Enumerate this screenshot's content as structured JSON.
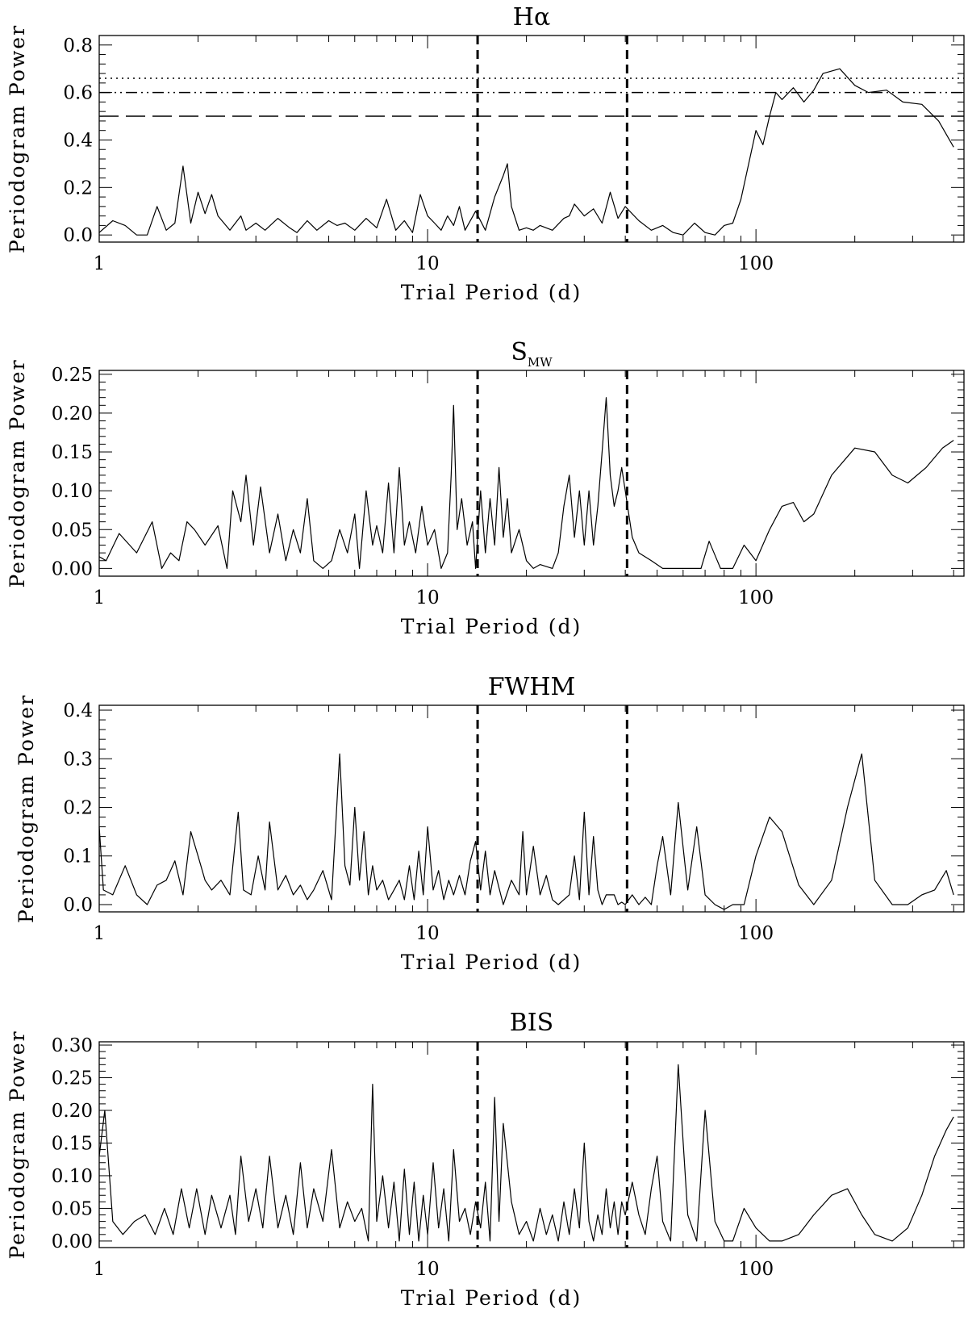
{
  "chart_data": [
    {
      "type": "line",
      "title": "Hα",
      "xlabel": "Trial Period (d)",
      "ylabel": "Periodogram Power",
      "x_scale": "log",
      "xlim": [
        1,
        430
      ],
      "ylim": [
        -0.03,
        0.84
      ],
      "x_tick_labels": [
        "1",
        "10",
        "100"
      ],
      "y_tick_labels": [
        "0.0",
        "0.2",
        "0.4",
        "0.6",
        "0.8"
      ],
      "y_ticks": [
        0.0,
        0.2,
        0.4,
        0.6,
        0.8
      ],
      "vertical_markers": [
        14.2,
        40.5
      ],
      "horizontal_markers": [
        {
          "y": 0.66,
          "style": "dotted"
        },
        {
          "y": 0.6,
          "style": "dash-dot-dot"
        },
        {
          "y": 0.5,
          "style": "long-dash"
        }
      ],
      "grid": false,
      "series": [
        {
          "x": [
            1.0,
            1.1,
            1.2,
            1.3,
            1.4,
            1.5,
            1.6,
            1.7,
            1.8,
            1.9,
            2.0,
            2.1,
            2.2,
            2.3,
            2.5,
            2.7,
            2.8,
            3.0,
            3.2,
            3.5,
            3.8,
            4.0,
            4.3,
            4.6,
            5.0,
            5.3,
            5.6,
            6.0,
            6.5,
            7.0,
            7.5,
            8.0,
            8.5,
            9.0,
            9.5,
            10.0,
            10.5,
            11.0,
            11.5,
            12.0,
            12.5,
            13.0,
            14.0,
            15.0,
            16.0,
            17.0,
            17.5,
            18.0,
            19.0,
            20.0,
            21.0,
            22.0,
            24.0,
            26.0,
            27.0,
            28.0,
            30.0,
            32.0,
            34.0,
            36.0,
            38.0,
            40.0,
            44.0,
            48.0,
            52.0,
            56.0,
            60.0,
            65.0,
            70.0,
            75.0,
            80.0,
            85.0,
            90.0,
            100.0,
            105.0,
            110.0,
            115.0,
            120.0,
            130.0,
            140.0,
            150.0,
            160.0,
            180.0,
            200.0,
            220.0,
            250.0,
            280.0,
            320.0,
            360.0,
            400.0
          ],
          "y": [
            0.01,
            0.06,
            0.04,
            0.0,
            0.0,
            0.12,
            0.02,
            0.05,
            0.29,
            0.05,
            0.18,
            0.09,
            0.17,
            0.08,
            0.02,
            0.08,
            0.02,
            0.05,
            0.02,
            0.07,
            0.03,
            0.01,
            0.06,
            0.02,
            0.06,
            0.04,
            0.05,
            0.02,
            0.07,
            0.03,
            0.15,
            0.02,
            0.06,
            0.01,
            0.17,
            0.08,
            0.05,
            0.02,
            0.08,
            0.04,
            0.12,
            0.02,
            0.1,
            0.02,
            0.16,
            0.25,
            0.3,
            0.12,
            0.02,
            0.03,
            0.02,
            0.04,
            0.02,
            0.07,
            0.08,
            0.13,
            0.08,
            0.11,
            0.05,
            0.18,
            0.07,
            0.12,
            0.06,
            0.02,
            0.04,
            0.01,
            0.0,
            0.05,
            0.01,
            0.0,
            0.04,
            0.05,
            0.15,
            0.44,
            0.38,
            0.5,
            0.6,
            0.57,
            0.62,
            0.56,
            0.61,
            0.68,
            0.7,
            0.63,
            0.6,
            0.61,
            0.56,
            0.55,
            0.48,
            0.37
          ]
        }
      ]
    },
    {
      "type": "line",
      "title": "S",
      "title_sub": "MW",
      "xlabel": "Trial Period (d)",
      "ylabel": "Periodogram Power",
      "x_scale": "log",
      "xlim": [
        1,
        430
      ],
      "ylim": [
        -0.01,
        0.255
      ],
      "x_tick_labels": [
        "1",
        "10",
        "100"
      ],
      "y_tick_labels": [
        "0.00",
        "0.05",
        "0.10",
        "0.15",
        "0.20",
        "0.25"
      ],
      "y_ticks": [
        0.0,
        0.05,
        0.1,
        0.15,
        0.2,
        0.25
      ],
      "vertical_markers": [
        14.2,
        40.5
      ],
      "grid": false,
      "series": [
        {
          "x": [
            1.0,
            1.05,
            1.15,
            1.3,
            1.45,
            1.55,
            1.65,
            1.75,
            1.85,
            1.95,
            2.1,
            2.3,
            2.45,
            2.55,
            2.7,
            2.8,
            2.95,
            3.1,
            3.3,
            3.5,
            3.7,
            3.9,
            4.1,
            4.3,
            4.5,
            4.8,
            5.1,
            5.4,
            5.7,
            6.0,
            6.2,
            6.5,
            6.8,
            7.0,
            7.3,
            7.6,
            7.9,
            8.2,
            8.5,
            8.8,
            9.2,
            9.6,
            10.0,
            10.5,
            11.0,
            11.5,
            11.8,
            12.0,
            12.3,
            12.7,
            13.2,
            13.7,
            14.0,
            14.5,
            15.0,
            15.5,
            16.0,
            16.5,
            17.0,
            17.5,
            18.0,
            19.0,
            20.0,
            21.0,
            22.0,
            24.0,
            25.0,
            26.0,
            27.0,
            28.0,
            29.0,
            30.0,
            31.0,
            32.0,
            33.0,
            34.0,
            35.0,
            36.0,
            37.0,
            38.0,
            39.0,
            40.0,
            42.0,
            44.0,
            48.0,
            52.0,
            56.0,
            62.0,
            68.0,
            72.0,
            78.0,
            85.0,
            92.0,
            100.0,
            110.0,
            120.0,
            130.0,
            140.0,
            150.0,
            170.0,
            200.0,
            230.0,
            260.0,
            290.0,
            330.0,
            370.0,
            400.0
          ],
          "y": [
            0.015,
            0.01,
            0.045,
            0.02,
            0.06,
            0.0,
            0.02,
            0.01,
            0.06,
            0.05,
            0.03,
            0.055,
            0.0,
            0.1,
            0.06,
            0.12,
            0.03,
            0.105,
            0.02,
            0.07,
            0.01,
            0.05,
            0.02,
            0.09,
            0.01,
            0.0,
            0.01,
            0.05,
            0.02,
            0.07,
            0.0,
            0.1,
            0.03,
            0.055,
            0.02,
            0.11,
            0.02,
            0.13,
            0.03,
            0.06,
            0.02,
            0.08,
            0.03,
            0.05,
            0.0,
            0.02,
            0.12,
            0.21,
            0.05,
            0.09,
            0.03,
            0.06,
            0.0,
            0.1,
            0.02,
            0.09,
            0.03,
            0.13,
            0.04,
            0.09,
            0.02,
            0.05,
            0.01,
            0.0,
            0.005,
            0.0,
            0.02,
            0.08,
            0.12,
            0.04,
            0.1,
            0.03,
            0.1,
            0.03,
            0.08,
            0.15,
            0.22,
            0.12,
            0.08,
            0.1,
            0.13,
            0.1,
            0.04,
            0.02,
            0.01,
            0.0,
            0.0,
            0.0,
            0.0,
            0.035,
            0.0,
            0.0,
            0.03,
            0.01,
            0.05,
            0.08,
            0.085,
            0.06,
            0.07,
            0.12,
            0.155,
            0.15,
            0.12,
            0.11,
            0.13,
            0.155,
            0.165
          ]
        }
      ]
    },
    {
      "type": "line",
      "title": "FWHM",
      "xlabel": "Trial Period (d)",
      "ylabel": "Periodogram Power",
      "x_scale": "log",
      "xlim": [
        1,
        430
      ],
      "ylim": [
        -0.015,
        0.41
      ],
      "x_tick_labels": [
        "1",
        "10",
        "100"
      ],
      "y_tick_labels": [
        "0.0",
        "0.1",
        "0.2",
        "0.3",
        "0.4"
      ],
      "y_ticks": [
        0.0,
        0.1,
        0.2,
        0.3,
        0.4
      ],
      "vertical_markers": [
        14.2,
        40.5
      ],
      "grid": false,
      "series": [
        {
          "x": [
            1.0,
            1.03,
            1.1,
            1.2,
            1.3,
            1.4,
            1.5,
            1.6,
            1.7,
            1.8,
            1.9,
            2.0,
            2.1,
            2.2,
            2.35,
            2.5,
            2.65,
            2.75,
            2.9,
            3.05,
            3.2,
            3.3,
            3.5,
            3.7,
            3.9,
            4.1,
            4.3,
            4.5,
            4.8,
            5.1,
            5.4,
            5.6,
            5.8,
            6.0,
            6.2,
            6.4,
            6.6,
            6.8,
            7.0,
            7.3,
            7.6,
            7.9,
            8.2,
            8.5,
            8.8,
            9.1,
            9.4,
            9.7,
            10.0,
            10.4,
            10.8,
            11.2,
            11.6,
            12.0,
            12.5,
            13.0,
            13.5,
            14.0,
            14.5,
            15.0,
            15.5,
            16.0,
            17.0,
            18.0,
            19.0,
            19.5,
            20.0,
            21.0,
            22.0,
            23.0,
            24.0,
            25.0,
            27.0,
            28.0,
            29.0,
            30.0,
            31.0,
            32.0,
            33.0,
            34.0,
            35.0,
            37.0,
            38.0,
            39.0,
            40.0,
            42.0,
            44.0,
            46.0,
            48.0,
            50.0,
            52.0,
            55.0,
            58.0,
            62.0,
            66.0,
            70.0,
            75.0,
            80.0,
            85.0,
            92.0,
            100.0,
            110.0,
            120.0,
            135.0,
            150.0,
            170.0,
            190.0,
            210.0,
            230.0,
            260.0,
            290.0,
            320.0,
            350.0,
            380.0,
            400.0
          ],
          "y": [
            0.16,
            0.03,
            0.02,
            0.08,
            0.02,
            0.0,
            0.04,
            0.05,
            0.09,
            0.02,
            0.15,
            0.1,
            0.05,
            0.03,
            0.05,
            0.02,
            0.19,
            0.03,
            0.02,
            0.1,
            0.03,
            0.17,
            0.03,
            0.06,
            0.02,
            0.04,
            0.01,
            0.03,
            0.07,
            0.01,
            0.31,
            0.08,
            0.04,
            0.2,
            0.05,
            0.15,
            0.02,
            0.08,
            0.03,
            0.05,
            0.01,
            0.03,
            0.05,
            0.01,
            0.08,
            0.01,
            0.11,
            0.02,
            0.16,
            0.03,
            0.07,
            0.01,
            0.05,
            0.02,
            0.06,
            0.02,
            0.09,
            0.13,
            0.03,
            0.11,
            0.02,
            0.07,
            0.0,
            0.05,
            0.02,
            0.15,
            0.02,
            0.12,
            0.02,
            0.06,
            0.01,
            0.0,
            0.02,
            0.1,
            0.01,
            0.19,
            0.02,
            0.14,
            0.03,
            0.0,
            0.02,
            0.02,
            0.0,
            0.005,
            0.0,
            0.02,
            0.0,
            0.015,
            0.0,
            0.08,
            0.14,
            0.02,
            0.21,
            0.03,
            0.16,
            0.02,
            0.0,
            -0.01,
            0.0,
            0.0,
            0.1,
            0.18,
            0.15,
            0.04,
            0.0,
            0.05,
            0.2,
            0.31,
            0.05,
            0.0,
            0.0,
            0.02,
            0.03,
            0.07,
            0.02
          ]
        }
      ]
    },
    {
      "type": "line",
      "title": "BIS",
      "xlabel": "Trial Period (d)",
      "ylabel": "Periodogram Power",
      "x_scale": "log",
      "xlim": [
        1,
        430
      ],
      "ylim": [
        -0.01,
        0.305
      ],
      "x_tick_labels": [
        "1",
        "10",
        "100"
      ],
      "y_tick_labels": [
        "0.00",
        "0.05",
        "0.10",
        "0.15",
        "0.20",
        "0.25",
        "0.30"
      ],
      "y_ticks": [
        0.0,
        0.05,
        0.1,
        0.15,
        0.2,
        0.25,
        0.3
      ],
      "vertical_markers": [
        14.2,
        40.5
      ],
      "grid": false,
      "series": [
        {
          "x": [
            1.0,
            1.04,
            1.1,
            1.18,
            1.28,
            1.38,
            1.48,
            1.58,
            1.68,
            1.78,
            1.88,
            1.98,
            2.1,
            2.2,
            2.35,
            2.5,
            2.6,
            2.7,
            2.85,
            3.0,
            3.15,
            3.3,
            3.5,
            3.7,
            3.9,
            4.1,
            4.3,
            4.5,
            4.8,
            5.1,
            5.4,
            5.7,
            6.0,
            6.3,
            6.6,
            6.8,
            7.0,
            7.3,
            7.6,
            7.9,
            8.2,
            8.5,
            8.8,
            9.1,
            9.4,
            9.7,
            10.0,
            10.4,
            10.8,
            11.2,
            11.6,
            12.0,
            12.5,
            13.0,
            13.5,
            14.0,
            14.5,
            15.0,
            15.5,
            16.0,
            16.5,
            17.0,
            18.0,
            19.0,
            20.0,
            21.0,
            22.0,
            23.0,
            24.0,
            25.0,
            26.0,
            27.0,
            28.0,
            29.0,
            30.0,
            31.0,
            32.0,
            33.0,
            34.0,
            35.0,
            36.0,
            37.0,
            38.0,
            39.0,
            40.0,
            42.0,
            44.0,
            46.0,
            48.0,
            50.0,
            52.0,
            55.0,
            58.0,
            62.0,
            66.0,
            70.0,
            75.0,
            80.0,
            85.0,
            92.0,
            100.0,
            110.0,
            120.0,
            135.0,
            150.0,
            170.0,
            190.0,
            210.0,
            230.0,
            260.0,
            290.0,
            320.0,
            350.0,
            380.0,
            400.0
          ],
          "y": [
            0.13,
            0.2,
            0.03,
            0.01,
            0.03,
            0.04,
            0.01,
            0.05,
            0.01,
            0.08,
            0.02,
            0.08,
            0.01,
            0.07,
            0.02,
            0.07,
            0.01,
            0.13,
            0.03,
            0.08,
            0.02,
            0.13,
            0.02,
            0.07,
            0.01,
            0.12,
            0.02,
            0.08,
            0.03,
            0.14,
            0.02,
            0.06,
            0.03,
            0.05,
            0.0,
            0.24,
            0.03,
            0.1,
            0.02,
            0.09,
            0.0,
            0.11,
            0.01,
            0.09,
            0.0,
            0.07,
            0.01,
            0.12,
            0.02,
            0.08,
            0.0,
            0.14,
            0.03,
            0.05,
            0.01,
            0.06,
            0.02,
            0.09,
            0.0,
            0.22,
            0.03,
            0.18,
            0.06,
            0.01,
            0.03,
            0.0,
            0.05,
            0.01,
            0.04,
            0.0,
            0.06,
            0.01,
            0.08,
            0.02,
            0.15,
            0.03,
            0.0,
            0.04,
            0.01,
            0.08,
            0.02,
            0.06,
            0.01,
            0.06,
            0.04,
            0.09,
            0.04,
            0.01,
            0.08,
            0.13,
            0.03,
            0.0,
            0.27,
            0.04,
            0.0,
            0.2,
            0.03,
            0.0,
            0.0,
            0.05,
            0.02,
            0.0,
            0.0,
            0.01,
            0.04,
            0.07,
            0.08,
            0.04,
            0.01,
            0.0,
            0.02,
            0.07,
            0.13,
            0.17,
            0.19
          ]
        }
      ]
    }
  ]
}
